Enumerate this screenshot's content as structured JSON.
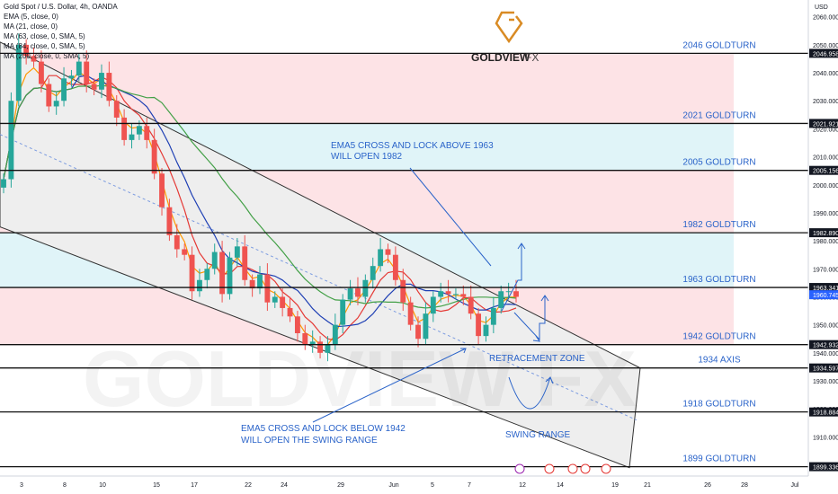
{
  "header": {
    "symbol_title": "Gold Spot / U.S. Dollar, 4h, OANDA",
    "indicators": [
      "EMA (5, close, 0)",
      "MA (21, close, 0)",
      "MA (63, close, 0, SMA, 5)",
      "MA (84, close, 0, SMA, 5)",
      "MA (200, close, 0, SMA, 5)"
    ]
  },
  "logo": {
    "brand": "GOLDVIEW",
    "suffix": "FX",
    "watermark": "GOLDVIEW FX"
  },
  "colors": {
    "candle_up": "#26a69a",
    "candle_down": "#ef5350",
    "zone_red": "#fde3e6",
    "zone_blue": "#e0f4f8",
    "channel_fill": "#eeeeee",
    "ema5": "#ff9800",
    "ma21": "#e53935",
    "ma63": "#1e3fb4",
    "ma200": "#43a047",
    "label": "#2a63c9",
    "arrow": "#2a63c9"
  },
  "chart_data": {
    "type": "candlestick",
    "y_unit": "USD",
    "ylim": [
      1896,
      2066
    ],
    "y_ticks": [
      1900,
      1910,
      1920,
      1930,
      1940,
      1950,
      1960,
      1970,
      1980,
      1990,
      2000,
      2010,
      2020,
      2030,
      2040,
      2050,
      2060
    ],
    "x_tick_labels": [
      "3",
      "8",
      "10",
      "15",
      "17",
      "22",
      "24",
      "29",
      "Jun",
      "5",
      "7",
      "12",
      "14",
      "19",
      "21",
      "26",
      "28",
      "Jul"
    ],
    "levels": [
      {
        "label": "2046 GOLDTURN",
        "price": 2046.958
      },
      {
        "label": "2021 GOLDTURN",
        "price": 2021.921
      },
      {
        "label": "2005 GOLDTURN",
        "price": 2005.156
      },
      {
        "label": "1982 GOLDTURN",
        "price": 1982.89
      },
      {
        "label": "1963 GOLDTURN",
        "price": 1963.341
      },
      {
        "label": "1942 GOLDTURN",
        "price": 1942.932
      },
      {
        "label": "1934 AXIS",
        "price": 1934.597
      },
      {
        "label": "1918 GOLDTURN",
        "price": 1918.884
      },
      {
        "label": "1899 GOLDTURN",
        "price": 1899.336
      }
    ],
    "last_price": 1960.745,
    "axis_price_tags": [
      "2046.958",
      "2021.921",
      "2005.156",
      "1982.890",
      "1963.341",
      "1960.745",
      "1942.932",
      "1934.597",
      "1918.884",
      "1899.336"
    ],
    "close_series": [
      2002,
      2030,
      2050,
      2046,
      2044,
      2036,
      2028,
      2030,
      2038,
      2039,
      2044,
      2036,
      2034,
      2040,
      2030,
      2024,
      2016,
      2018,
      2021,
      2016,
      2004,
      1992,
      1982,
      1977,
      1975,
      1962,
      1966,
      1970,
      1976,
      1961,
      1974,
      1978,
      1966,
      1963,
      1968,
      1958,
      1960,
      1956,
      1953,
      1947,
      1943,
      1944,
      1940,
      1943,
      1950,
      1959,
      1963,
      1960,
      1966,
      1971,
      1977,
      1975,
      1966,
      1958,
      1950,
      1945,
      1954,
      1960,
      1962,
      1961,
      1961,
      1960,
      1954,
      1946,
      1950,
      1956,
      1962,
      1962,
      1960
    ]
  },
  "annotations": {
    "upper_note": [
      "EMA5 CROSS AND LOCK ABOVE 1963",
      "WILL OPEN 1982"
    ],
    "lower_note": [
      "EMA5 CROSS AND LOCK BELOW 1942",
      "WILL OPEN THE SWING RANGE"
    ],
    "retracement": "RETRACEMENT ZONE",
    "swing_range": "SWING RANGE"
  }
}
